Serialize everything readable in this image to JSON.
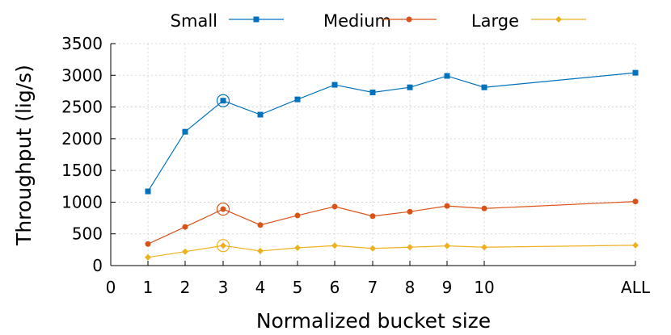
{
  "chart_data": {
    "type": "line",
    "title": "",
    "xlabel": "Normalized bucket size",
    "ylabel": "Throughput (lig/s)",
    "x_tick_labels": [
      "0",
      "1",
      "2",
      "3",
      "4",
      "5",
      "6",
      "7",
      "8",
      "9",
      "10",
      "ALL"
    ],
    "y_tick_labels": [
      "0",
      "500",
      "1000",
      "1500",
      "2000",
      "2500",
      "3000",
      "3500"
    ],
    "ylim": [
      0,
      3500
    ],
    "grid": true,
    "legend_position": "top",
    "categories": [
      "1",
      "2",
      "3",
      "4",
      "5",
      "6",
      "7",
      "8",
      "9",
      "10",
      "ALL"
    ],
    "highlighted_category": "3",
    "series": [
      {
        "name": "Small",
        "color": "#0072bd",
        "marker": "square",
        "values": [
          1170,
          2110,
          2600,
          2380,
          2620,
          2850,
          2730,
          2810,
          2990,
          2810,
          3040
        ]
      },
      {
        "name": "Medium",
        "color": "#d95319",
        "marker": "circle",
        "values": [
          340,
          610,
          890,
          640,
          790,
          930,
          780,
          850,
          940,
          900,
          1010
        ]
      },
      {
        "name": "Large",
        "color": "#edb120",
        "marker": "diamond",
        "values": [
          130,
          220,
          315,
          230,
          280,
          315,
          270,
          290,
          310,
          290,
          320
        ]
      }
    ]
  }
}
